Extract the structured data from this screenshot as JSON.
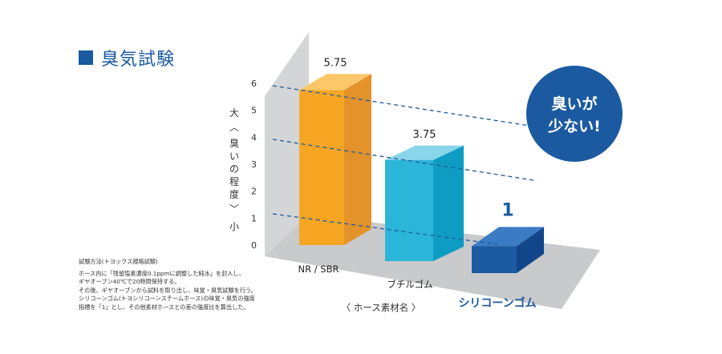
{
  "title": "臭気試験",
  "chart_data": {
    "type": "bar",
    "categories": [
      "NR / SBR",
      "ブチルゴム",
      "シリコーンゴム"
    ],
    "values": [
      5.75,
      3.75,
      1
    ],
    "value_labels": [
      "5.75",
      "3.75",
      "1"
    ],
    "ylim": [
      0,
      6
    ],
    "yticks": [
      "0",
      "1",
      "2",
      "3",
      "4",
      "5",
      "6"
    ],
    "ylabel_chars": [
      "大",
      "︿",
      "臭",
      "い",
      "の",
      "程",
      "度",
      "﹀",
      "小"
    ],
    "xlabel": "〈 ホース素材名 〉",
    "highlight_index": 2,
    "colors": {
      "front": [
        "#f6a623",
        "#2bb5d8",
        "#1c5aa2"
      ],
      "side": [
        "#e3932a",
        "#0f9cc3",
        "#12468a"
      ],
      "top": [
        "#fbc768",
        "#89d5ea",
        "#3a7bc3"
      ]
    }
  },
  "badge": {
    "lines": [
      "臭いが",
      "少ない!"
    ],
    "color": "#1b5aa0"
  },
  "method": {
    "title": "試験方法(トヨックス規格試験)",
    "lines": [
      "ホース内に「残留塩素濃度0.1ppmに調整した純水」を封入し、",
      "ギヤオーブン40℃で20時間保持する。",
      "その後、ギヤオーブンから試料を取り出し、味覚・臭気試験を行う。",
      "シリコーンゴム(トヨシリコーンスチームホース)の味覚・臭気の強度",
      "指標を「1」とし、その他素材ホースとの差の強度比を算出した。"
    ]
  }
}
